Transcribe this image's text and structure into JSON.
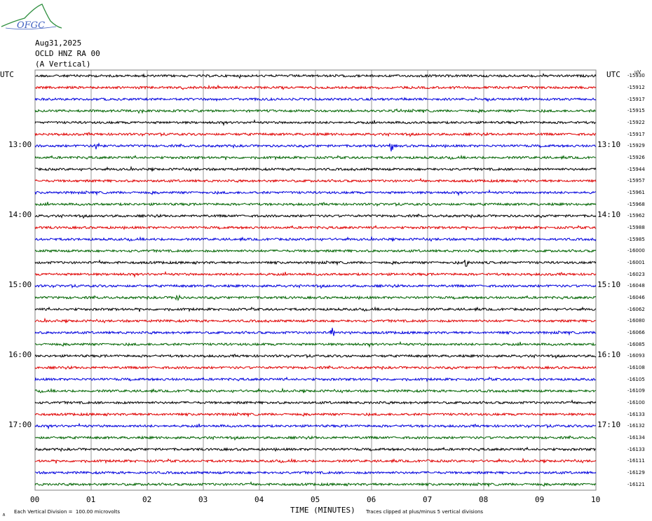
{
  "logo": {
    "text": "OFGC"
  },
  "header": {
    "date": "Aug31,2025",
    "station": "OCLD HNZ RA 00",
    "component": "(A Vertical)"
  },
  "colors": {
    "trace_cycle": [
      "#000000",
      "#e00000",
      "#0000dd",
      "#006400"
    ],
    "grid": "#808080"
  },
  "chart_data": {
    "type": "line",
    "title": "",
    "xlabel": "TIME (MINUTES)",
    "x_ticks": [
      "00",
      "01",
      "02",
      "03",
      "04",
      "05",
      "06",
      "07",
      "08",
      "09",
      "10"
    ],
    "xlim": [
      0,
      10
    ],
    "left_axis_title": "UTC",
    "right_axis_title": "UTC",
    "left_time_labels": [
      {
        "row": 6,
        "text": "13:00"
      },
      {
        "row": 12,
        "text": "14:00"
      },
      {
        "row": 18,
        "text": "15:00"
      },
      {
        "row": 24,
        "text": "16:00"
      },
      {
        "row": 30,
        "text": "17:00"
      }
    ],
    "right_time_labels": [
      {
        "row": 6,
        "text": "13:10"
      },
      {
        "row": 12,
        "text": "14:10"
      },
      {
        "row": 18,
        "text": "15:10"
      },
      {
        "row": 24,
        "text": "16:10"
      },
      {
        "row": 30,
        "text": "17:10"
      }
    ],
    "right_top_mark": "uV",
    "trace_offsets": [
      "-15930",
      "-15912",
      "-15917",
      "-15915",
      "-15922",
      "-15917",
      "-15929",
      "-15926",
      "-15944",
      "-15957",
      "-15961",
      "-15968",
      "-15962",
      "-15988",
      "-15985",
      "-16000",
      "-16001",
      "-16023",
      "-16048",
      "-16046",
      "-16062",
      "-16080",
      "-16066",
      "-16085",
      "-16093",
      "-16108",
      "-16105",
      "-16109",
      "-16100",
      "-16133",
      "-16132",
      "-16134",
      "-16133",
      "-16111",
      "-16129",
      "-16121"
    ],
    "events": [
      {
        "row": 6,
        "minute": 1.1
      },
      {
        "row": 6,
        "minute": 6.35
      },
      {
        "row": 16,
        "minute": 7.7
      },
      {
        "row": 19,
        "minute": 2.55
      },
      {
        "row": 22,
        "minute": 5.3
      }
    ],
    "footer_left": "Each Vertical Division =  100.00 microvolts",
    "footer_right": "Traces clipped at plus/minus 5 vertical divisions"
  }
}
